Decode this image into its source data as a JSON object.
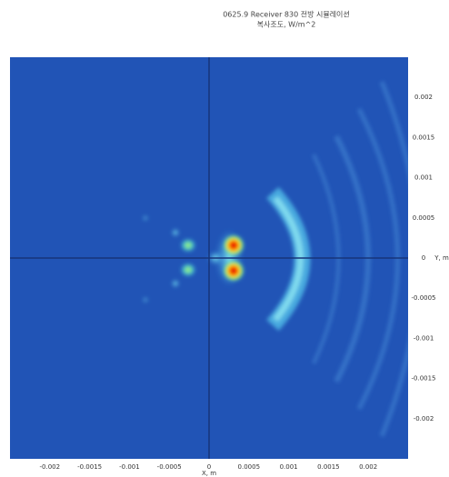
{
  "chart_data": {
    "type": "heatmap",
    "title": "0625.9 Receiver 830 전방 시뮬레이션",
    "subtitle": "복사조도, W/m^2",
    "x_label": "X, m",
    "y_label": "Y, m",
    "xlim": [
      -0.0025,
      0.0025
    ],
    "ylim": [
      -0.0025,
      0.0025
    ],
    "xticks": [
      -0.002,
      -0.0015,
      -0.001,
      -0.0005,
      0,
      0.0005,
      0.001,
      0.0015,
      0.002
    ],
    "yticks": [
      -0.002,
      -0.0015,
      -0.001,
      -0.0005,
      0,
      0.0005,
      0.001,
      0.0015,
      0.002
    ],
    "zero_lines": true,
    "background_color": "#2154b6",
    "zero_line_color": "#17357a"
  }
}
